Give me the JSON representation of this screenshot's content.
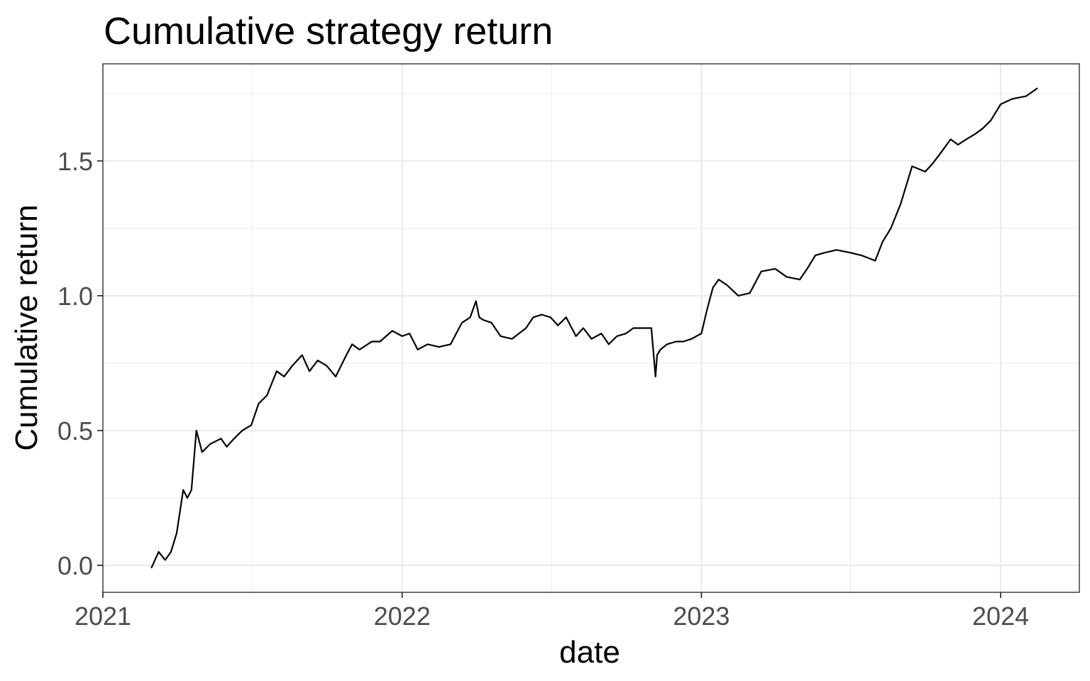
{
  "chart_data": {
    "type": "line",
    "title": "Cumulative strategy return",
    "xlabel": "date",
    "ylabel": "Cumulative return",
    "x_ticks": [
      "2021",
      "2022",
      "2023",
      "2024"
    ],
    "y_ticks": [
      "0.0",
      "0.5",
      "1.0",
      "1.5"
    ],
    "xlim": [
      "2021-01-01",
      "2024-04-06"
    ],
    "ylim": [
      -0.1,
      1.86
    ],
    "grid": true,
    "legend": "none",
    "colors": {
      "line": "#000000",
      "grid": "#ebebeb",
      "panel_border": "#333333",
      "tick_label": "#4d4d4d"
    },
    "series": [
      {
        "x": [
          "2021-03-01",
          "2021-03-10",
          "2021-03-18",
          "2021-03-25",
          "2021-04-01",
          "2021-04-09",
          "2021-04-14",
          "2021-04-19",
          "2021-04-25",
          "2021-05-02",
          "2021-05-12",
          "2021-05-25",
          "2021-06-01",
          "2021-06-10",
          "2021-06-20",
          "2021-07-01",
          "2021-07-10",
          "2021-07-20",
          "2021-08-01",
          "2021-08-10",
          "2021-08-20",
          "2021-09-01",
          "2021-09-10",
          "2021-09-20",
          "2021-10-01",
          "2021-10-12",
          "2021-10-25",
          "2021-11-01",
          "2021-11-10",
          "2021-11-25",
          "2021-12-05",
          "2021-12-20",
          "2022-01-01",
          "2022-01-10",
          "2022-01-20",
          "2022-02-01",
          "2022-02-15",
          "2022-03-01",
          "2022-03-15",
          "2022-03-25",
          "2022-04-01",
          "2022-04-05",
          "2022-04-10",
          "2022-04-20",
          "2022-05-01",
          "2022-05-15",
          "2022-06-01",
          "2022-06-10",
          "2022-06-20",
          "2022-07-01",
          "2022-07-10",
          "2022-07-20",
          "2022-08-01",
          "2022-08-10",
          "2022-08-20",
          "2022-09-01",
          "2022-09-10",
          "2022-09-20",
          "2022-10-01",
          "2022-10-10",
          "2022-10-20",
          "2022-11-01",
          "2022-11-06",
          "2022-11-08",
          "2022-11-12",
          "2022-11-20",
          "2022-12-01",
          "2022-12-10",
          "2022-12-20",
          "2023-01-01",
          "2023-01-08",
          "2023-01-15",
          "2023-01-22",
          "2023-02-01",
          "2023-02-15",
          "2023-03-01",
          "2023-03-15",
          "2023-04-01",
          "2023-04-15",
          "2023-05-01",
          "2023-05-10",
          "2023-05-20",
          "2023-06-01",
          "2023-06-15",
          "2023-07-01",
          "2023-07-15",
          "2023-08-01",
          "2023-08-10",
          "2023-08-20",
          "2023-09-01",
          "2023-09-15",
          "2023-10-01",
          "2023-10-10",
          "2023-10-20",
          "2023-11-01",
          "2023-11-10",
          "2023-11-20",
          "2023-12-01",
          "2023-12-10",
          "2023-12-20",
          "2024-01-01",
          "2024-01-15",
          "2024-02-01",
          "2024-02-15"
        ],
        "y": [
          -0.01,
          0.05,
          0.02,
          0.05,
          0.12,
          0.28,
          0.25,
          0.28,
          0.5,
          0.42,
          0.45,
          0.47,
          0.44,
          0.47,
          0.5,
          0.52,
          0.6,
          0.63,
          0.72,
          0.7,
          0.74,
          0.78,
          0.72,
          0.76,
          0.74,
          0.7,
          0.78,
          0.82,
          0.8,
          0.83,
          0.83,
          0.87,
          0.85,
          0.86,
          0.8,
          0.82,
          0.81,
          0.82,
          0.9,
          0.92,
          0.98,
          0.92,
          0.91,
          0.9,
          0.85,
          0.84,
          0.88,
          0.92,
          0.93,
          0.92,
          0.89,
          0.92,
          0.85,
          0.88,
          0.84,
          0.86,
          0.82,
          0.85,
          0.86,
          0.88,
          0.88,
          0.88,
          0.7,
          0.78,
          0.8,
          0.82,
          0.83,
          0.83,
          0.84,
          0.86,
          0.95,
          1.03,
          1.06,
          1.04,
          1.0,
          1.01,
          1.09,
          1.1,
          1.07,
          1.06,
          1.1,
          1.15,
          1.16,
          1.17,
          1.16,
          1.15,
          1.13,
          1.2,
          1.25,
          1.34,
          1.48,
          1.46,
          1.49,
          1.53,
          1.58,
          1.56,
          1.58,
          1.6,
          1.62,
          1.65,
          1.71,
          1.73,
          1.74,
          1.77
        ]
      }
    ]
  }
}
